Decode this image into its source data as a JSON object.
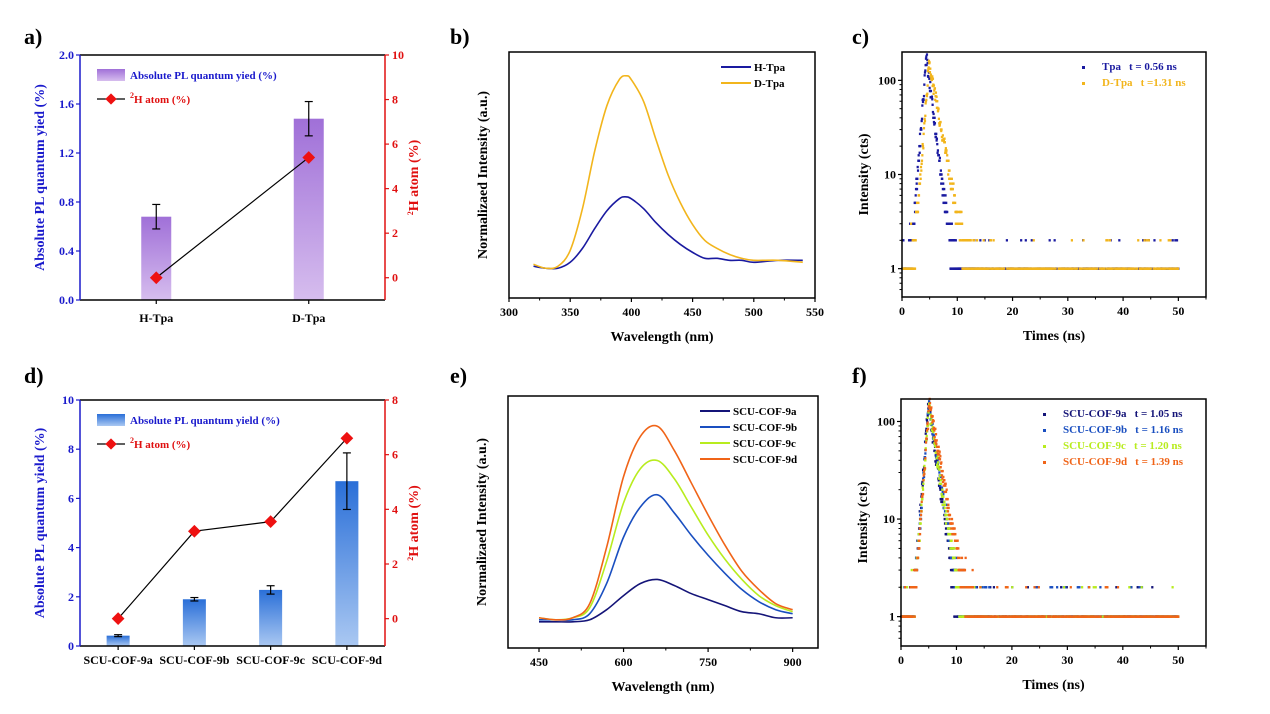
{
  "figure": {
    "panels": [
      "a)",
      "b)",
      "c)",
      "d)",
      "e)",
      "f)"
    ]
  },
  "colors": {
    "left_axis": "#1a1acc",
    "right_axis": "#e01010",
    "marker": "#ee1111",
    "bar_a_top": "#a070d8",
    "bar_a_bottom": "#d6bdee",
    "bar_d_top": "#2a6fd8",
    "bar_d_bottom": "#aac8f2",
    "h_tpa": "#1a1aa0",
    "d_tpa": "#f2b51c",
    "cof9a": "#141478",
    "cof9b": "#1a4fc0",
    "cof9c": "#b8ec1e",
    "cof9d": "#f06418"
  },
  "chart_data": [
    {
      "id": "a",
      "type": "bar",
      "title": "",
      "categories": [
        "H-Tpa",
        "D-Tpa"
      ],
      "xlabel": "",
      "ylabel": "Absolute PL quantum yied (%)",
      "ylim": [
        0,
        2.0
      ],
      "yticks": [
        "0.0",
        "0.4",
        "0.8",
        "1.2",
        "1.6",
        "2.0"
      ],
      "ylabel_right": "²H atom (%)",
      "ylim_right": [
        -1,
        10
      ],
      "yticks_right": [
        "0",
        "2",
        "4",
        "6",
        "8",
        "10"
      ],
      "series": [
        {
          "name": "Absolute PL quantum yied (%)",
          "kind": "bar",
          "axis": "left",
          "values": [
            0.68,
            1.48
          ],
          "errors": [
            0.1,
            0.14
          ]
        },
        {
          "name": "²H atom (%)",
          "kind": "line-marker",
          "axis": "right",
          "values": [
            0,
            5.4
          ]
        }
      ],
      "legend": [
        "Absolute PL quantum yied (%)",
        "²H atom (%)"
      ],
      "legend_position": "top-left"
    },
    {
      "id": "b",
      "type": "line",
      "title": "",
      "xlabel": "Wavelength (nm)",
      "ylabel": "Normalizaed Intensity (a.u.)",
      "xlim": [
        300,
        550
      ],
      "xticks": [
        "300",
        "350",
        "400",
        "450",
        "500",
        "550"
      ],
      "ylim": [
        -0.12,
        1.12
      ],
      "series": [
        {
          "name": "H-Tpa",
          "x": [
            320,
            330,
            340,
            350,
            360,
            370,
            380,
            390,
            395,
            400,
            410,
            420,
            430,
            440,
            450,
            460,
            470,
            480,
            490,
            500,
            520,
            540
          ],
          "y": [
            0.04,
            0.03,
            0.03,
            0.06,
            0.13,
            0.23,
            0.32,
            0.38,
            0.39,
            0.38,
            0.33,
            0.26,
            0.2,
            0.15,
            0.11,
            0.08,
            0.08,
            0.07,
            0.07,
            0.06,
            0.07,
            0.07
          ]
        },
        {
          "name": "D-Tpa",
          "x": [
            320,
            330,
            340,
            350,
            360,
            370,
            380,
            390,
            396,
            400,
            410,
            420,
            430,
            440,
            450,
            460,
            470,
            480,
            490,
            500,
            520,
            540
          ],
          "y": [
            0.05,
            0.03,
            0.04,
            0.12,
            0.33,
            0.62,
            0.85,
            0.98,
            1.0,
            0.98,
            0.87,
            0.68,
            0.5,
            0.36,
            0.25,
            0.17,
            0.13,
            0.1,
            0.08,
            0.07,
            0.07,
            0.06
          ]
        }
      ],
      "legend": [
        "H-Tpa",
        "D-Tpa"
      ],
      "legend_position": "top-right"
    },
    {
      "id": "c",
      "type": "scatter",
      "title": "",
      "xlabel": "Times (ns)",
      "ylabel": "Intensity (cts)",
      "xlim": [
        0,
        55
      ],
      "xticks": [
        "0",
        "10",
        "20",
        "30",
        "40",
        "50"
      ],
      "yscale": "log",
      "ylim": [
        0.5,
        200
      ],
      "yticks": [
        "1",
        "10",
        "100"
      ],
      "series": [
        {
          "name": "Tpa",
          "lifetime_label": "t = 0.56 ns",
          "peak_time_ns": 4.4,
          "peak_counts": 180,
          "decay_ns": 0.56
        },
        {
          "name": "D-Tpa",
          "lifetime_label": "t =1.31 ns",
          "peak_time_ns": 4.9,
          "peak_counts": 160,
          "decay_ns": 1.31
        }
      ],
      "legend": [
        "Tpa    t = 0.56 ns",
        "D-Tpa  t =1.31 ns"
      ],
      "legend_position": "top-right"
    },
    {
      "id": "d",
      "type": "bar",
      "title": "",
      "categories": [
        "SCU-COF-9a",
        "SCU-COF-9b",
        "SCU-COF-9c",
        "SCU-COF-9d"
      ],
      "xlabel": "",
      "ylabel": "Absolute PL quantum yield (%)",
      "ylim": [
        0,
        10
      ],
      "yticks": [
        "0",
        "2",
        "4",
        "6",
        "8",
        "10"
      ],
      "ylabel_right": "²H atom (%)",
      "ylim_right": [
        -1,
        8
      ],
      "yticks_right": [
        "0",
        "2",
        "4",
        "6",
        "8"
      ],
      "series": [
        {
          "name": "Absolute PL quantum yield (%)",
          "kind": "bar",
          "axis": "left",
          "values": [
            0.42,
            1.9,
            2.28,
            6.7
          ],
          "errors": [
            0.04,
            0.07,
            0.17,
            1.15
          ]
        },
        {
          "name": "²H atom (%)",
          "kind": "line-marker",
          "axis": "right",
          "values": [
            0,
            3.2,
            3.55,
            6.6
          ]
        }
      ],
      "legend": [
        "Absolute PL quantum yield (%)",
        "²H atom (%)"
      ],
      "legend_position": "top-left"
    },
    {
      "id": "e",
      "type": "line",
      "title": "",
      "xlabel": "Wavelength (nm)",
      "ylabel": "Normalizaed Intensity (a.u.)",
      "xlim": [
        395,
        945
      ],
      "xticks": [
        "450",
        "600",
        "750",
        "900"
      ],
      "ylim": [
        -0.1,
        1.15
      ],
      "series": [
        {
          "name": "SCU-COF-9a",
          "x": [
            450,
            480,
            510,
            540,
            570,
            600,
            630,
            660,
            690,
            720,
            750,
            780,
            810,
            840,
            870,
            900
          ],
          "y": [
            0.03,
            0.03,
            0.03,
            0.04,
            0.09,
            0.16,
            0.22,
            0.24,
            0.21,
            0.17,
            0.14,
            0.11,
            0.08,
            0.07,
            0.05,
            0.05
          ]
        },
        {
          "name": "SCU-COF-9b",
          "x": [
            450,
            480,
            510,
            540,
            570,
            600,
            630,
            660,
            690,
            720,
            750,
            780,
            810,
            840,
            870,
            900
          ],
          "y": [
            0.04,
            0.04,
            0.04,
            0.07,
            0.22,
            0.45,
            0.6,
            0.66,
            0.57,
            0.46,
            0.36,
            0.27,
            0.19,
            0.13,
            0.09,
            0.07
          ]
        },
        {
          "name": "SCU-COF-9c",
          "x": [
            450,
            480,
            510,
            540,
            570,
            600,
            630,
            660,
            690,
            720,
            750,
            780,
            810,
            840,
            870,
            900
          ],
          "y": [
            0.05,
            0.04,
            0.05,
            0.1,
            0.33,
            0.62,
            0.79,
            0.83,
            0.74,
            0.6,
            0.46,
            0.34,
            0.24,
            0.16,
            0.11,
            0.08
          ]
        },
        {
          "name": "SCU-COF-9d",
          "x": [
            450,
            480,
            510,
            540,
            570,
            600,
            630,
            660,
            690,
            720,
            750,
            780,
            810,
            840,
            870,
            900
          ],
          "y": [
            0.05,
            0.04,
            0.05,
            0.12,
            0.4,
            0.75,
            0.95,
            1.0,
            0.88,
            0.72,
            0.56,
            0.41,
            0.28,
            0.19,
            0.12,
            0.09
          ]
        }
      ],
      "legend": [
        "SCU-COF-9a",
        "SCU-COF-9b",
        "SCU-COF-9c",
        "SCU-COF-9d"
      ],
      "legend_position": "top-right"
    },
    {
      "id": "f",
      "type": "scatter",
      "title": "",
      "xlabel": "Times (ns)",
      "ylabel": "Intensity (cts)",
      "xlim": [
        0,
        55
      ],
      "xticks": [
        "0",
        "10",
        "20",
        "30",
        "40",
        "50"
      ],
      "yscale": "log",
      "ylim": [
        0.5,
        170
      ],
      "yticks": [
        "1",
        "10",
        "100"
      ],
      "series": [
        {
          "name": "SCU-COF-9a",
          "lifetime_label": "t = 1.05 ns",
          "peak_time_ns": 4.9,
          "peak_counts": 150,
          "decay_ns": 1.05
        },
        {
          "name": "SCU-COF-9b",
          "lifetime_label": "t = 1.16 ns",
          "peak_time_ns": 5.0,
          "peak_counts": 150,
          "decay_ns": 1.16
        },
        {
          "name": "SCU-COF-9c",
          "lifetime_label": "t = 1.20 ns",
          "peak_time_ns": 5.0,
          "peak_counts": 140,
          "decay_ns": 1.2
        },
        {
          "name": "SCU-COF-9d",
          "lifetime_label": "t = 1.39 ns",
          "peak_time_ns": 5.1,
          "peak_counts": 155,
          "decay_ns": 1.39
        }
      ],
      "legend": [
        "SCU-COF-9a t = 1.05 ns",
        "SCU-COF-9b t = 1.16 ns",
        "SCU-COF-9c t = 1.20 ns",
        "SCU-COF-9d t = 1.39 ns"
      ],
      "legend_position": "top-right"
    }
  ]
}
